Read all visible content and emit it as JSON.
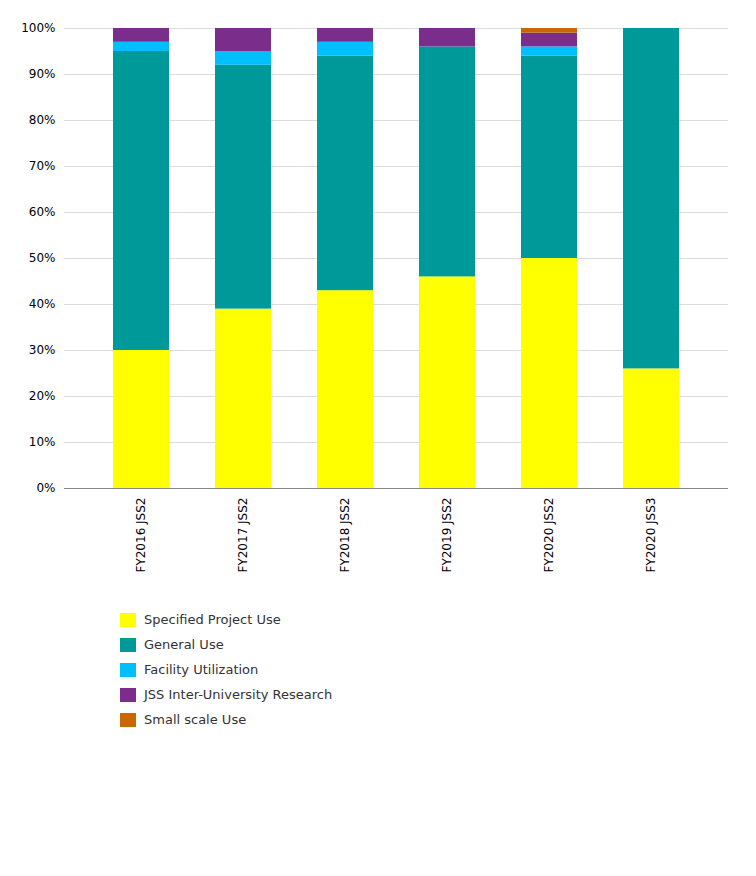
{
  "chart_data": {
    "type": "bar",
    "stacked": true,
    "grid": true,
    "legend": "bottom",
    "categories": [
      "FY2016 JSS2",
      "FY2017 JSS2",
      "FY2018 JSS2",
      "FY2019 JSS2",
      "FY2020 JSS2",
      "FY2020 JSS3"
    ],
    "series": [
      {
        "name": "Specified Project Use",
        "color": "#FFFF00",
        "values": [
          30,
          39,
          43,
          46,
          50,
          26
        ]
      },
      {
        "name": "General Use",
        "color": "#009999",
        "values": [
          65,
          53,
          51,
          50,
          44,
          74
        ]
      },
      {
        "name": "Facility Utilization",
        "color": "#00BFFF",
        "values": [
          2,
          3,
          3,
          0,
          2,
          0
        ]
      },
      {
        "name": "JSS Inter-University Research",
        "color": "#7B2D8B",
        "values": [
          3,
          5,
          3,
          4,
          3,
          0
        ]
      },
      {
        "name": "Small scale Use",
        "color": "#CC6600",
        "values": [
          0,
          0,
          0,
          0,
          1,
          0
        ]
      }
    ],
    "ylim": [
      0,
      100
    ],
    "yticks": [
      {
        "value": 0,
        "label": "0%"
      },
      {
        "value": 10,
        "label": "10%"
      },
      {
        "value": 20,
        "label": "20%"
      },
      {
        "value": 30,
        "label": "30%"
      },
      {
        "value": 40,
        "label": "40%"
      },
      {
        "value": 50,
        "label": "50%"
      },
      {
        "value": 60,
        "label": "60%"
      },
      {
        "value": 70,
        "label": "70%"
      },
      {
        "value": 80,
        "label": "80%"
      },
      {
        "value": 90,
        "label": "90%"
      },
      {
        "value": 100,
        "label": "100%"
      }
    ]
  }
}
